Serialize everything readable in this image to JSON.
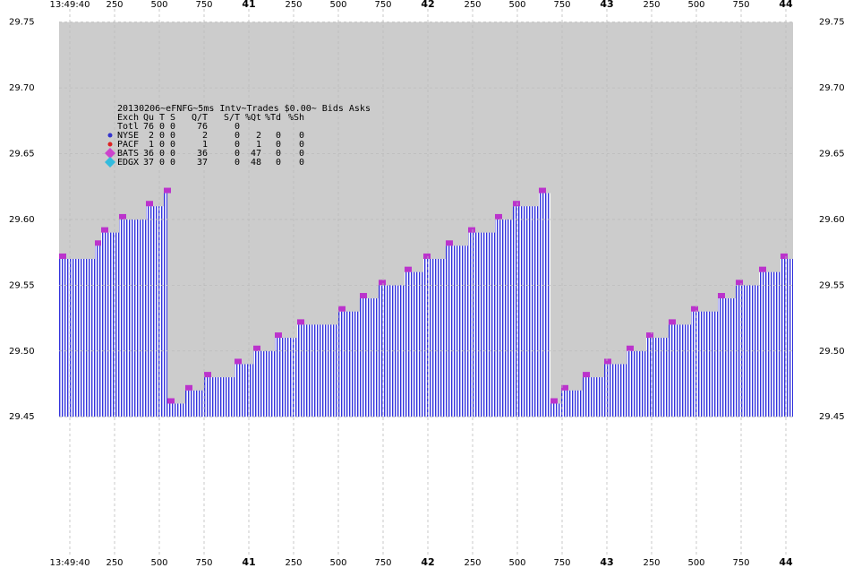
{
  "chart_data": {
    "type": "step-area",
    "title": "20130206~eFNFG~5ms Intv~Trades $0.00~ Bids  Asks",
    "table": {
      "header": [
        "Exch",
        "Qu",
        "T",
        "S",
        "Q/T",
        "S/T",
        "%Qt",
        "%Td",
        "%Sh"
      ],
      "rows": [
        {
          "cells": [
            "Totl",
            "76",
            "0",
            "0",
            "76",
            "0"
          ]
        },
        {
          "cells": [
            "NYSE",
            "2",
            "0",
            "0",
            "2",
            "0",
            "2",
            "0",
            "0"
          ],
          "marker": "circle",
          "color": "#3333cc"
        },
        {
          "cells": [
            "PACF",
            "1",
            "0",
            "0",
            "1",
            "0",
            "1",
            "0",
            "0"
          ],
          "marker": "circle",
          "color": "#dd2222"
        },
        {
          "cells": [
            "BATS",
            "36",
            "0",
            "0",
            "36",
            "0",
            "47",
            "0",
            "0"
          ],
          "marker": "diamond",
          "color": "#cc44cc"
        },
        {
          "cells": [
            "EDGX",
            "37",
            "0",
            "0",
            "37",
            "0",
            "48",
            "0",
            "0"
          ],
          "marker": "diamond",
          "color": "#33bbdd"
        }
      ]
    },
    "series": [
      {
        "name": "Bids",
        "color": "#3333dd",
        "x": [
          -0.06,
          0.14,
          0.175,
          0.275,
          0.425,
          0.525,
          0.545,
          0.645,
          0.75,
          0.92,
          1.025,
          1.145,
          1.27,
          1.5,
          1.62,
          1.725,
          1.87,
          1.975,
          2.1,
          2.225,
          2.375,
          2.475,
          2.62,
          2.685,
          2.745,
          2.865,
          2.985,
          3.11,
          3.22,
          3.345,
          3.47,
          3.62,
          3.72,
          3.85,
          3.97
        ],
        "values": [
          29.57,
          29.58,
          29.59,
          29.6,
          29.61,
          29.62,
          29.46,
          29.47,
          29.48,
          29.49,
          29.5,
          29.51,
          29.52,
          29.53,
          29.54,
          29.55,
          29.56,
          29.57,
          29.58,
          29.59,
          29.6,
          29.61,
          29.62,
          29.46,
          29.47,
          29.48,
          29.49,
          29.5,
          29.51,
          29.52,
          29.53,
          29.54,
          29.55,
          29.56,
          29.57
        ]
      },
      {
        "name": "Asks",
        "color": "#cccccc",
        "x": [
          -0.06
        ],
        "values": [
          29.75
        ]
      }
    ],
    "xlim": [
      -0.06,
      4.04
    ],
    "ylim": [
      29.35,
      29.76
    ],
    "xticks": [
      {
        "value": 0,
        "label": "13:49:40"
      },
      {
        "value": 0.25,
        "label": "250"
      },
      {
        "value": 0.5,
        "label": "500"
      },
      {
        "value": 0.75,
        "label": "750"
      },
      {
        "value": 1,
        "label": "41"
      },
      {
        "value": 1.25,
        "label": "250"
      },
      {
        "value": 1.5,
        "label": "500"
      },
      {
        "value": 1.75,
        "label": "750"
      },
      {
        "value": 2,
        "label": "42"
      },
      {
        "value": 2.25,
        "label": "250"
      },
      {
        "value": 2.5,
        "label": "500"
      },
      {
        "value": 2.75,
        "label": "750"
      },
      {
        "value": 3,
        "label": "43"
      },
      {
        "value": 3.25,
        "label": "250"
      },
      {
        "value": 3.5,
        "label": "500"
      },
      {
        "value": 3.75,
        "label": "750"
      },
      {
        "value": 4,
        "label": "44"
      }
    ],
    "yticks": [
      {
        "value": 29.45,
        "label": "29.45"
      },
      {
        "value": 29.5,
        "label": "29.50"
      },
      {
        "value": 29.55,
        "label": "29.55"
      },
      {
        "value": 29.6,
        "label": "29.60"
      },
      {
        "value": 29.65,
        "label": "29.65"
      },
      {
        "value": 29.7,
        "label": "29.70"
      },
      {
        "value": 29.75,
        "label": "29.75"
      }
    ],
    "grid": true
  }
}
